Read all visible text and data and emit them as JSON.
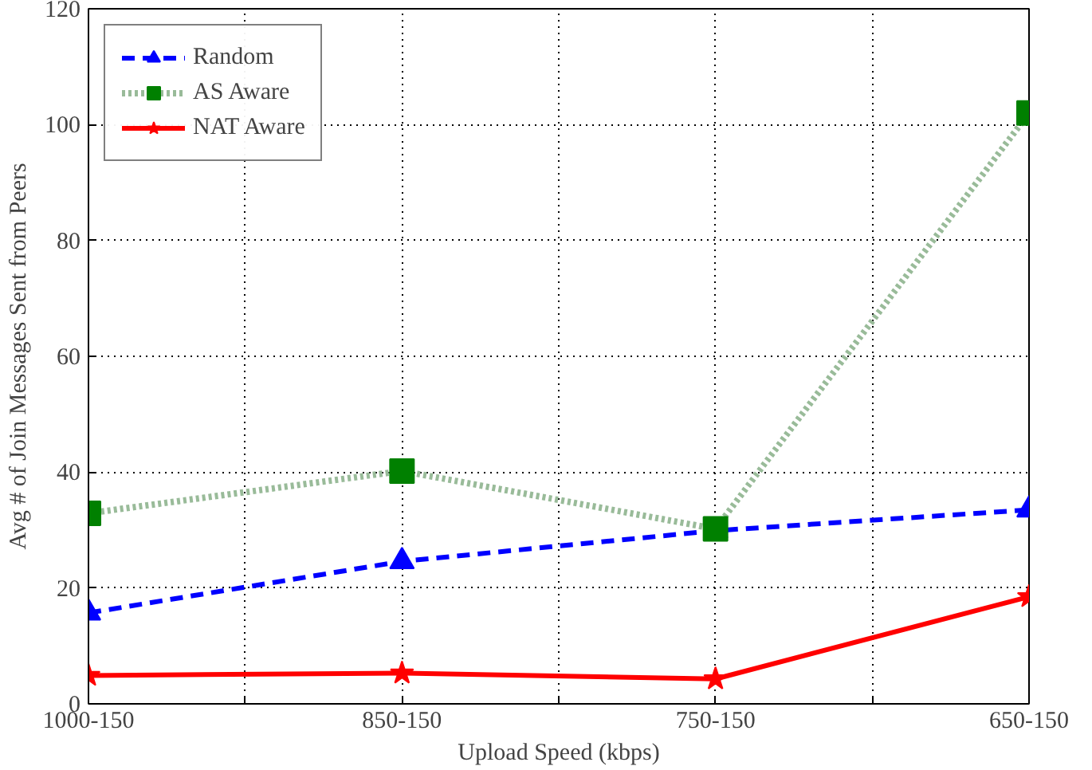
{
  "chart_data": {
    "type": "line",
    "xlabel": "Upload Speed (kbps)",
    "ylabel": "Avg # of Join Messages Sent from Peers",
    "categories": [
      "1000-150",
      "850-150",
      "750-150",
      "650-150"
    ],
    "ylim": [
      0,
      120
    ],
    "yticks": [
      0,
      20,
      40,
      60,
      80,
      100,
      120
    ],
    "grid": true,
    "legend": "top left",
    "series": [
      {
        "name": "Random",
        "color": "#0000ff",
        "marker": "triangle",
        "line_style": "dashed",
        "values": [
          15.7,
          24.6,
          29.9,
          33.5
        ]
      },
      {
        "name": "AS Aware",
        "color": "#008000",
        "marker": "square",
        "line_style": "dotted",
        "values": [
          32.9,
          40.2,
          30.2,
          102
        ]
      },
      {
        "name": "NAT Aware",
        "color": "#ff0000",
        "marker": "star",
        "line_style": "solid",
        "values": [
          4.9,
          5.3,
          4.3,
          18.5
        ]
      }
    ]
  }
}
